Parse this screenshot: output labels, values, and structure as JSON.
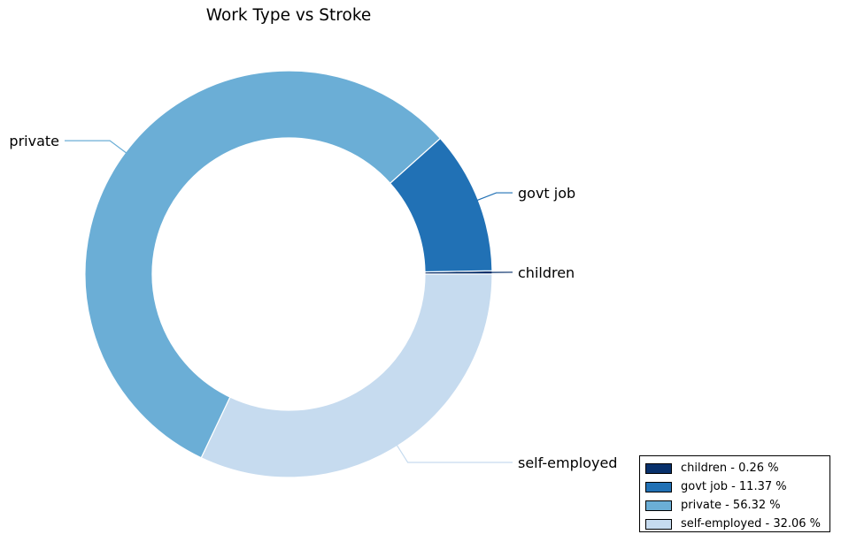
{
  "chart_data": {
    "type": "pie",
    "variant": "donut",
    "title": "Work Type vs Stroke",
    "categories": [
      "children",
      "govt job",
      "private",
      "self-employed"
    ],
    "values": [
      0.26,
      11.37,
      56.32,
      32.06
    ],
    "unit": "%",
    "colors": [
      "#08306b",
      "#2171b5",
      "#6baed6",
      "#c6dbef"
    ],
    "legend": {
      "position": "lower-right",
      "entries": [
        "children - 0.26 %",
        "govt job - 11.37 %",
        "private - 56.32 %",
        "self-employed - 32.06 %"
      ]
    }
  }
}
